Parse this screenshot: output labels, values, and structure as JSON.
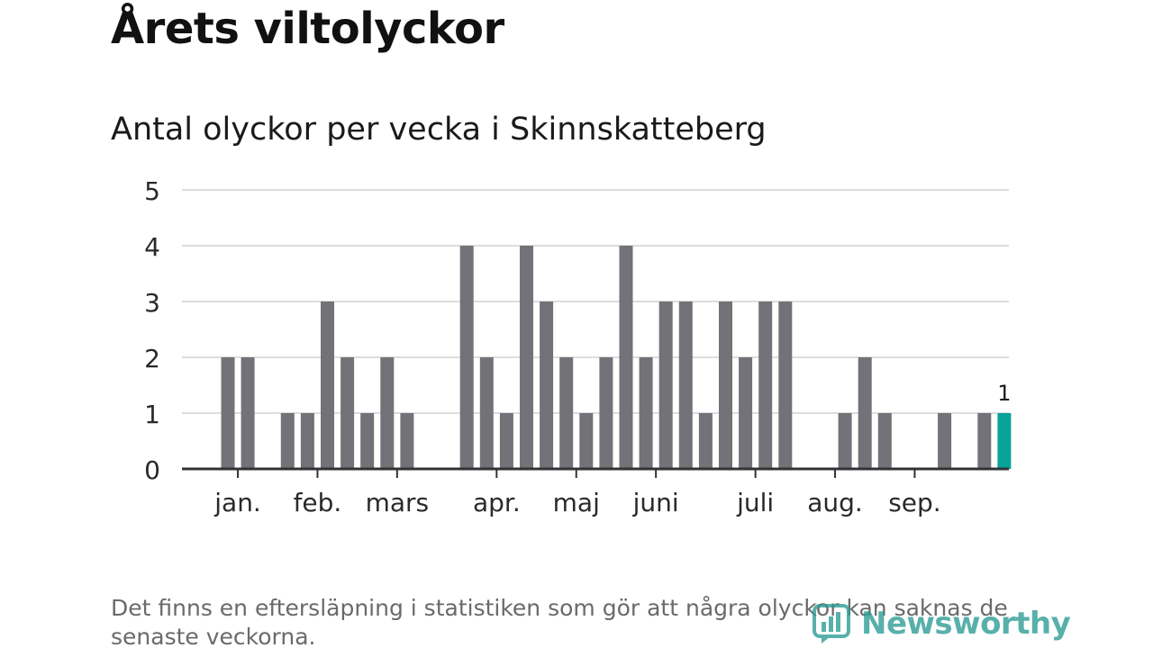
{
  "title": "Årets viltolyckor",
  "subtitle": "Antal olyckor per vecka i Skinnskatteberg",
  "footnote": "Det finns en eftersläpning i statistiken som gör att några olyckor kan saknas de senaste veckorna.",
  "brand": {
    "name": "Newsworthy",
    "color": "#2a9a93"
  },
  "colors": {
    "bar": "#737278",
    "highlight": "#0aa39a",
    "grid": "#dddddd",
    "axis": "#333333"
  },
  "chart_data": {
    "type": "bar",
    "title": "Antal olyckor per vecka i Skinnskatteberg",
    "xlabel": "",
    "ylabel": "",
    "ylim": [
      0,
      5
    ],
    "yticks": [
      0,
      1,
      2,
      3,
      4,
      5
    ],
    "weeks": [
      1,
      2,
      3,
      4,
      5,
      6,
      7,
      8,
      9,
      10,
      11,
      12,
      13,
      14,
      15,
      16,
      17,
      18,
      19,
      20,
      21,
      22,
      23,
      24,
      25,
      26,
      27,
      28,
      29,
      30,
      31,
      32,
      33,
      34,
      35,
      36,
      37,
      38,
      39,
      40,
      41,
      42
    ],
    "values": [
      0,
      0,
      2,
      2,
      0,
      1,
      1,
      3,
      2,
      1,
      2,
      1,
      0,
      0,
      4,
      2,
      1,
      4,
      3,
      2,
      1,
      2,
      4,
      2,
      3,
      3,
      1,
      3,
      2,
      3,
      3,
      0,
      0,
      1,
      2,
      1,
      0,
      0,
      1,
      0,
      1,
      1
    ],
    "highlight_index": 41,
    "highlight_label": "1",
    "month_labels": [
      {
        "label": "jan.",
        "week": 3.5
      },
      {
        "label": "feb.",
        "week": 7.5
      },
      {
        "label": "mars",
        "week": 11.5
      },
      {
        "label": "apr.",
        "week": 16.5
      },
      {
        "label": "maj",
        "week": 20.5
      },
      {
        "label": "juni",
        "week": 24.5
      },
      {
        "label": "juli",
        "week": 29.5
      },
      {
        "label": "aug.",
        "week": 33.5
      },
      {
        "label": "sep.",
        "week": 37.5
      }
    ]
  }
}
